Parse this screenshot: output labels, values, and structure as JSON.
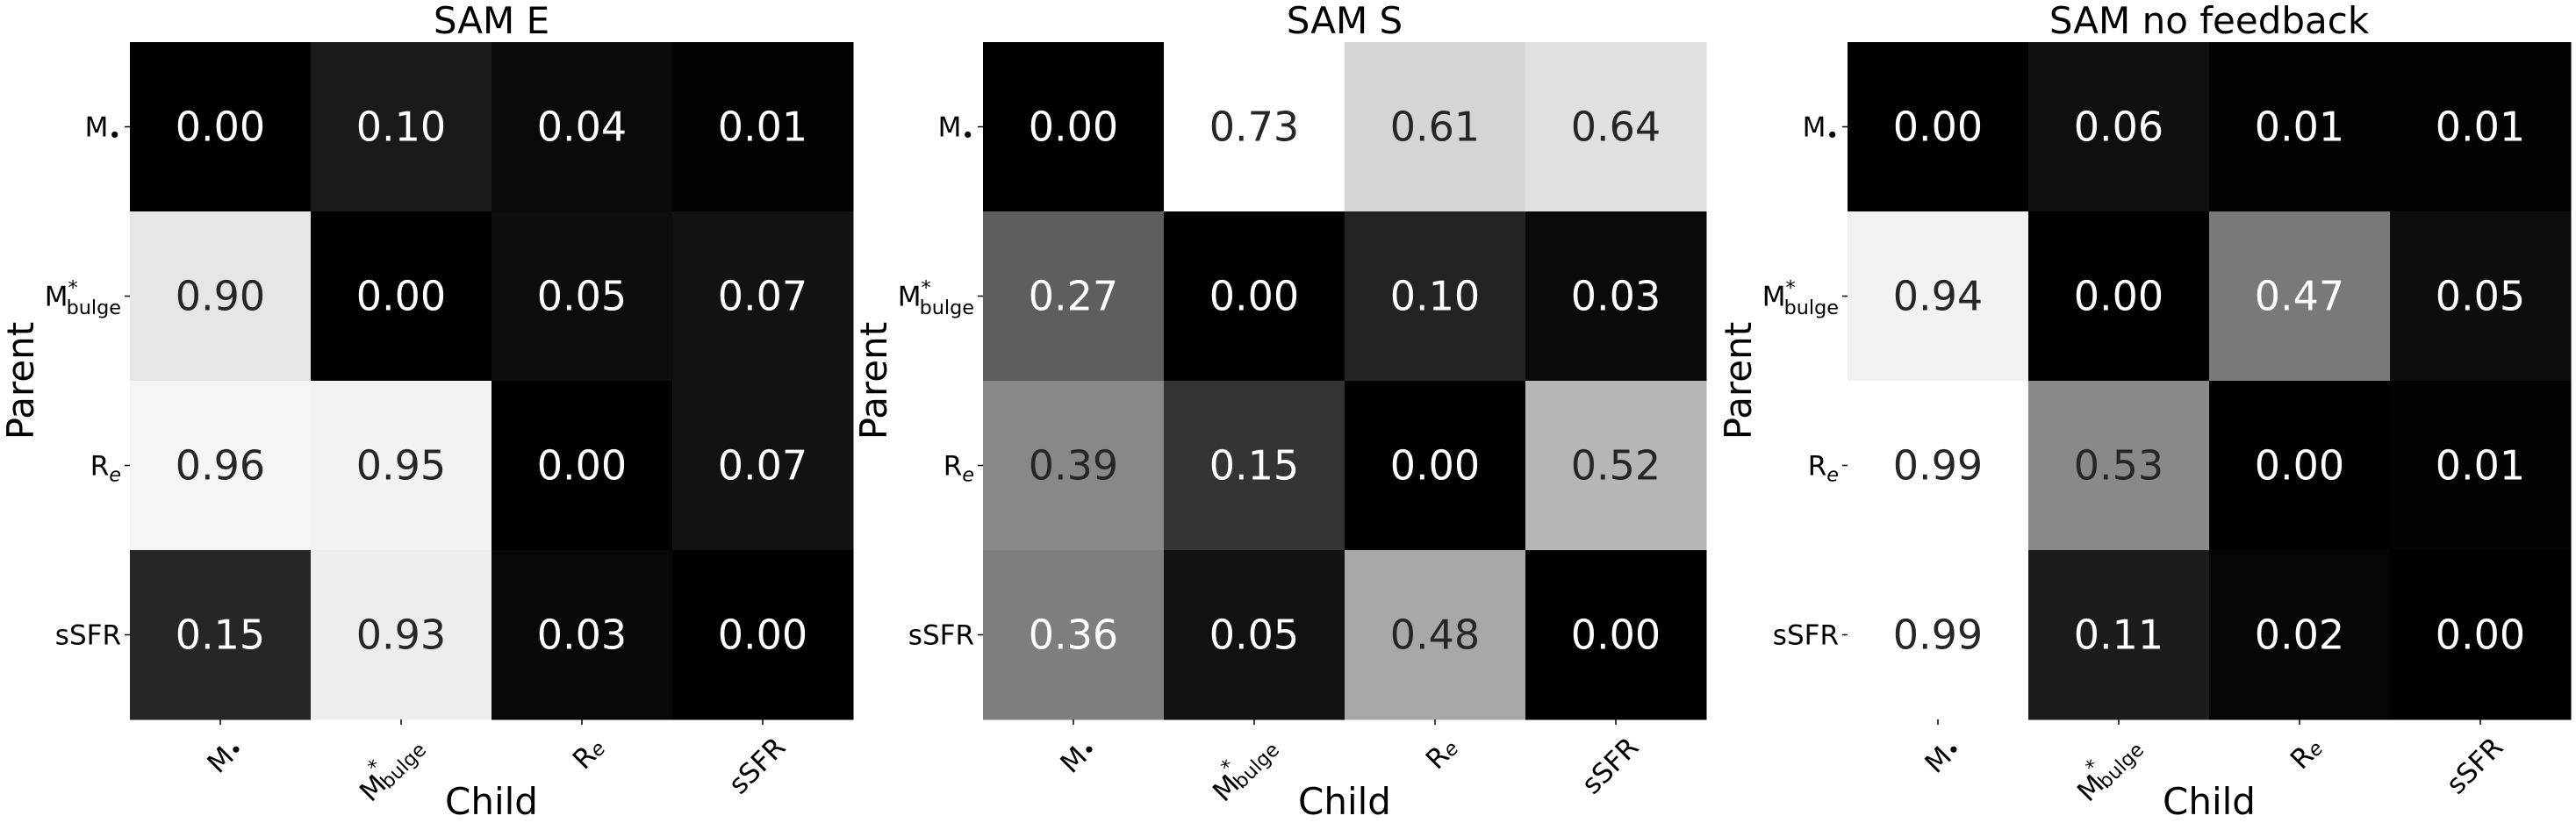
{
  "chart_data": [
    {
      "type": "heatmap",
      "title": "SAM E",
      "xlabel": "Child",
      "ylabel": "Parent",
      "x_categories": [
        "M•",
        "M*bulge",
        "Re",
        "sSFR"
      ],
      "y_categories": [
        "M•",
        "M*bulge",
        "Re",
        "sSFR"
      ],
      "values": [
        [
          0.0,
          0.1,
          0.04,
          0.01
        ],
        [
          0.9,
          0.0,
          0.05,
          0.07
        ],
        [
          0.96,
          0.95,
          0.0,
          0.07
        ],
        [
          0.15,
          0.93,
          0.03,
          0.0
        ]
      ],
      "value_range": [
        0,
        1
      ],
      "colormap": "gray"
    },
    {
      "type": "heatmap",
      "title": "SAM S",
      "xlabel": "Child",
      "ylabel": "Parent",
      "x_categories": [
        "M•",
        "M*bulge",
        "Re",
        "sSFR"
      ],
      "y_categories": [
        "M•",
        "M*bulge",
        "Re",
        "sSFR"
      ],
      "values": [
        [
          0.0,
          0.73,
          0.61,
          0.64
        ],
        [
          0.27,
          0.0,
          0.1,
          0.03
        ],
        [
          0.39,
          0.15,
          0.0,
          0.52
        ],
        [
          0.36,
          0.05,
          0.48,
          0.0
        ]
      ],
      "value_range": [
        0,
        0.73
      ],
      "colormap": "gray"
    },
    {
      "type": "heatmap",
      "title": "SAM no feedback",
      "xlabel": "Child",
      "ylabel": "Parent",
      "x_categories": [
        "M•",
        "M*bulge",
        "Re",
        "sSFR"
      ],
      "y_categories": [
        "M•",
        "M*bulge",
        "Re",
        "sSFR"
      ],
      "values": [
        [
          0.0,
          0.06,
          0.01,
          0.01
        ],
        [
          0.94,
          0.0,
          0.47,
          0.05
        ],
        [
          0.99,
          0.53,
          0.0,
          0.01
        ],
        [
          0.99,
          0.11,
          0.02,
          0.0
        ]
      ],
      "value_range": [
        0,
        0.99
      ],
      "colormap": "gray"
    }
  ]
}
